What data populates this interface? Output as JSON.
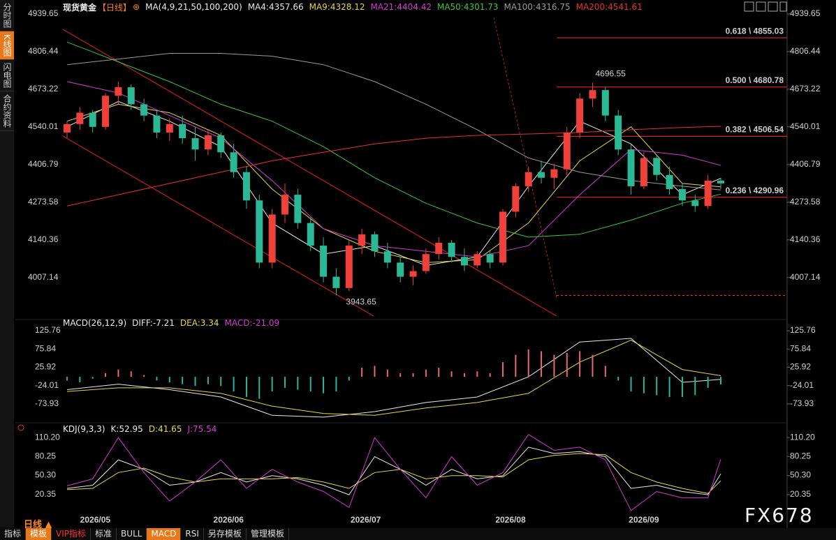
{
  "sidebar": {
    "items": [
      "分时图",
      "K线图",
      "闪电图",
      "合约资料"
    ],
    "active": 1
  },
  "period_menu": "日线 ▲",
  "watermark": "FX678",
  "toolbar": [
    {
      "label": "指标"
    },
    {
      "label": "模板",
      "background": "#e8781a"
    },
    {
      "label": "VIP指标",
      "color": "#ff3030"
    },
    {
      "label": "标准"
    },
    {
      "label": "BULL"
    },
    {
      "label": "MACD",
      "background": "#e8781a"
    },
    {
      "label": "RSI"
    },
    {
      "label": "另存模板"
    },
    {
      "label": "管理模板"
    }
  ],
  "chart_data": [
    {
      "type": "candlestick",
      "title": "现货黄金",
      "period": "【日线】",
      "indicator": "MA(4,9,21,50,100,200)",
      "up_color": "#f0403a",
      "down_color": "#2bb894",
      "open": [
        4520,
        4550,
        4590,
        4540,
        4650,
        4680,
        4620,
        4580,
        4520,
        4550,
        4500,
        4460,
        4510,
        4450,
        4380,
        4280,
        4060,
        4230,
        4300,
        4200,
        4120,
        4010,
        3970,
        4120,
        4160,
        4100,
        4060,
        4010,
        4030,
        4090,
        4130,
        4080,
        4050,
        4090,
        4060,
        4240,
        4330,
        4380,
        4360,
        4390,
        4520,
        4640,
        4670,
        4580,
        4460,
        4330,
        4430,
        4370,
        4320,
        4280,
        4260,
        4350
      ],
      "high": [
        4560,
        4610,
        4600,
        4660,
        4700,
        4690,
        4640,
        4600,
        4570,
        4580,
        4540,
        4530,
        4520,
        4480,
        4400,
        4300,
        4250,
        4340,
        4320,
        4220,
        4150,
        4040,
        4140,
        4180,
        4170,
        4130,
        4080,
        4050,
        4110,
        4150,
        4140,
        4110,
        4100,
        4100,
        4250,
        4340,
        4400,
        4420,
        4410,
        4540,
        4660,
        4696.55,
        4680,
        4600,
        4480,
        4450,
        4440,
        4400,
        4340,
        4300,
        4370,
        4360
      ],
      "low": [
        4500,
        4530,
        4520,
        4530,
        4620,
        4600,
        4560,
        4500,
        4490,
        4480,
        4420,
        4440,
        4430,
        4360,
        4250,
        4040,
        4040,
        4200,
        4180,
        4100,
        3990,
        3943.65,
        3960,
        4090,
        4080,
        4040,
        3990,
        3980,
        4020,
        4070,
        4060,
        4030,
        4040,
        4040,
        4050,
        4220,
        4310,
        4340,
        4320,
        4370,
        4500,
        4610,
        4560,
        4440,
        4300,
        4320,
        4350,
        4300,
        4260,
        4240,
        4250,
        4320
      ],
      "close": [
        4550,
        4590,
        4540,
        4650,
        4680,
        4620,
        4580,
        4520,
        4550,
        4500,
        4460,
        4510,
        4450,
        4380,
        4280,
        4060,
        4230,
        4300,
        4200,
        4120,
        4010,
        3970,
        4120,
        4160,
        4100,
        4060,
        4010,
        4030,
        4090,
        4130,
        4080,
        4050,
        4090,
        4060,
        4240,
        4330,
        4380,
        4360,
        4390,
        4520,
        4640,
        4670,
        4580,
        4460,
        4330,
        4430,
        4370,
        4320,
        4280,
        4260,
        4350,
        4340
      ],
      "xticks": [
        {
          "value": 2.2,
          "label": "2026/05"
        },
        {
          "value": 12.6,
          "label": "2026/06"
        },
        {
          "value": 23.3,
          "label": "2026/07"
        },
        {
          "value": 34.6,
          "label": "2026/08"
        },
        {
          "value": 45,
          "label": "2026/09"
        }
      ],
      "ylim": [
        3866,
        4964
      ],
      "yticks": [
        4007.14,
        4140.36,
        4273.58,
        4406.79,
        4540.01,
        4673.22,
        4806.44,
        4939.65
      ],
      "series": [
        {
          "name": "MA4:4357.66",
          "color": "#e8e8e8",
          "x": [
            0,
            4,
            8,
            12,
            16,
            20,
            24,
            28,
            32,
            36,
            40,
            44,
            48,
            51
          ],
          "values": [
            4540,
            4630,
            4560,
            4470,
            4200,
            4090,
            4120,
            4050,
            4080,
            4330,
            4560,
            4480,
            4300,
            4358
          ]
        },
        {
          "name": "MA9:4328.12",
          "color": "#e6d744",
          "x": [
            0,
            4,
            8,
            12,
            16,
            20,
            24,
            28,
            32,
            36,
            40,
            44,
            48,
            51
          ],
          "values": [
            4560,
            4620,
            4590,
            4510,
            4320,
            4180,
            4100,
            4060,
            4070,
            4200,
            4420,
            4540,
            4340,
            4328
          ]
        },
        {
          "name": "MA21:4404.42",
          "color": "#d23ad2",
          "x": [
            0,
            4,
            8,
            12,
            16,
            20,
            24,
            28,
            32,
            36,
            40,
            44,
            48,
            51
          ],
          "values": [
            4700,
            4660,
            4580,
            4500,
            4350,
            4180,
            4120,
            4100,
            4080,
            4120,
            4300,
            4460,
            4440,
            4404
          ]
        },
        {
          "name": "MA50:4301.73",
          "color": "#3cc43c",
          "x": [
            0,
            4,
            8,
            12,
            16,
            20,
            24,
            28,
            32,
            36,
            40,
            44,
            48,
            51
          ],
          "values": [
            4840,
            4770,
            4700,
            4620,
            4560,
            4470,
            4360,
            4270,
            4200,
            4150,
            4160,
            4210,
            4270,
            4302
          ]
        },
        {
          "name": "MA100:4316.75",
          "color": "#9a9a9a",
          "x": [
            0,
            4,
            8,
            12,
            16,
            20,
            24,
            28,
            32,
            36,
            40,
            44,
            48,
            51
          ],
          "values": [
            4760,
            4780,
            4800,
            4800,
            4790,
            4760,
            4700,
            4620,
            4530,
            4430,
            4380,
            4350,
            4330,
            4317
          ]
        },
        {
          "name": "MA200:4541.61",
          "color": "#e83030",
          "x": [
            0,
            4,
            8,
            12,
            16,
            20,
            24,
            28,
            32,
            36,
            40,
            44,
            48,
            51
          ],
          "values": [
            4260,
            4300,
            4340,
            4380,
            4420,
            4450,
            4480,
            4500,
            4510,
            4515,
            4520,
            4530,
            4538,
            4542
          ]
        }
      ],
      "annotations": [
        {
          "x": 41,
          "value": 4696.55,
          "color": "#ff5a5a"
        },
        {
          "x": 21,
          "value": 3943.65,
          "color": "#2bb894"
        }
      ],
      "levels": [
        {
          "label": "0.618 \\ 4855.03",
          "value": 4855.03
        },
        {
          "label": "0.500 \\ 4680.78",
          "value": 4680.78
        },
        {
          "label": "0.382 \\ 4506.54",
          "value": 4506.54
        },
        {
          "label": "0.236 \\ 4290.96",
          "value": 4290.96
        },
        {
          "value": 3943.65,
          "dashed": true
        }
      ],
      "level_color": "#ff2a2a"
    },
    {
      "type": "macd",
      "title": "MACD(26,12,9)",
      "ylim": [
        -114,
        143
      ],
      "yticks": [
        -73.93,
        -24.01,
        25.92,
        75.84,
        125.76
      ],
      "up_color": "#e86a6a",
      "down_color": "#2bb894",
      "series": [
        {
          "name": "DIFF:-7.21",
          "color": "#e8e8e8",
          "x": [
            0,
            4,
            8,
            12,
            16,
            20,
            24,
            28,
            32,
            36,
            40,
            44,
            48,
            51
          ],
          "values": [
            -35,
            -20,
            -35,
            -55,
            -105,
            -110,
            -95,
            -70,
            -55,
            0,
            95,
            105,
            -15,
            -7
          ]
        },
        {
          "name": "DEA:3.34",
          "color": "#e6d744",
          "x": [
            0,
            4,
            8,
            12,
            16,
            20,
            24,
            28,
            32,
            36,
            40,
            44,
            48,
            51
          ],
          "values": [
            -40,
            -30,
            -30,
            -45,
            -80,
            -100,
            -105,
            -85,
            -70,
            -45,
            40,
            100,
            20,
            3
          ]
        },
        {
          "name": "MACD:-21.09",
          "color": "#d23ad2",
          "bars": true,
          "values": [
            -10,
            -15,
            -5,
            10,
            20,
            15,
            5,
            -10,
            -15,
            -20,
            -25,
            -20,
            -25,
            -40,
            -55,
            -60,
            -40,
            -30,
            -35,
            -40,
            -45,
            -40,
            -10,
            25,
            30,
            20,
            10,
            10,
            20,
            25,
            15,
            10,
            15,
            10,
            40,
            60,
            75,
            70,
            60,
            65,
            70,
            60,
            30,
            -10,
            -40,
            -45,
            -50,
            -55,
            -55,
            -50,
            -30,
            -21
          ]
        }
      ]
    },
    {
      "type": "line",
      "title": "KDJ(9,3,3)",
      "ylim": [
        -14,
        118
      ],
      "yticks": [
        {
          "value": 20.35,
          "label": "20.35"
        },
        {
          "value": 50.3,
          "label": "50.30"
        },
        {
          "value": 80.25,
          "label": "80.25"
        },
        {
          "value": 110.2,
          "label": "110.20"
        }
      ],
      "series": [
        {
          "name": "K:52.95",
          "color": "#e8e8e8",
          "x": [
            0,
            2,
            4,
            6,
            8,
            10,
            12,
            14,
            16,
            18,
            20,
            22,
            24,
            26,
            28,
            30,
            32,
            34,
            36,
            38,
            40,
            42,
            44,
            46,
            48,
            50,
            51
          ],
          "values": [
            30,
            35,
            75,
            60,
            35,
            40,
            55,
            40,
            50,
            45,
            35,
            20,
            80,
            60,
            35,
            60,
            45,
            50,
            95,
            85,
            88,
            80,
            30,
            35,
            25,
            20,
            53
          ]
        },
        {
          "name": "D:41.65",
          "color": "#e6d744",
          "x": [
            0,
            2,
            4,
            6,
            8,
            10,
            12,
            14,
            16,
            18,
            20,
            22,
            24,
            26,
            28,
            30,
            32,
            34,
            36,
            38,
            40,
            42,
            44,
            46,
            48,
            50,
            51
          ],
          "values": [
            28,
            30,
            55,
            62,
            48,
            40,
            45,
            45,
            45,
            47,
            40,
            30,
            55,
            60,
            45,
            50,
            50,
            48,
            75,
            82,
            85,
            83,
            55,
            40,
            30,
            22,
            42
          ]
        },
        {
          "name": "J:75.54",
          "color": "#d23ad2",
          "x": [
            0,
            2,
            4,
            6,
            8,
            10,
            12,
            14,
            16,
            18,
            20,
            22,
            24,
            26,
            28,
            30,
            32,
            34,
            36,
            38,
            40,
            42,
            44,
            46,
            48,
            50,
            51
          ],
          "values": [
            34,
            45,
            110,
            55,
            10,
            40,
            75,
            30,
            60,
            40,
            25,
            0,
            110,
            60,
            15,
            80,
            35,
            55,
            115,
            90,
            95,
            75,
            -5,
            25,
            15,
            15,
            76
          ]
        }
      ]
    }
  ]
}
